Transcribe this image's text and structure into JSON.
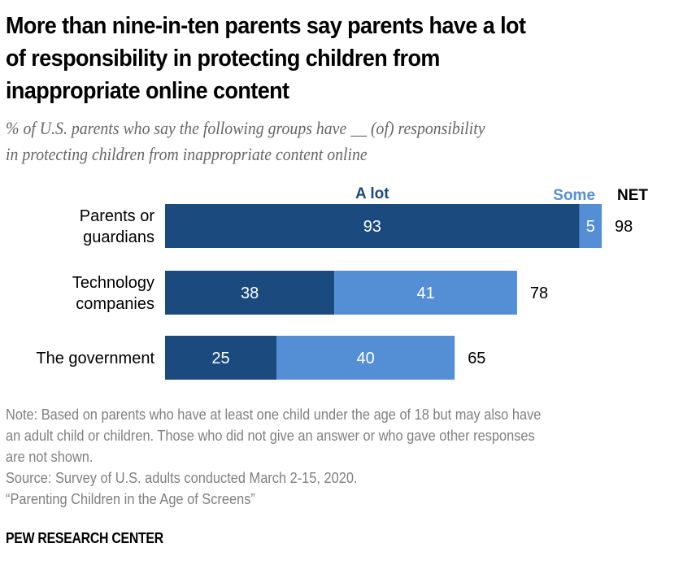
{
  "header": {
    "title_lines": [
      "More than nine-in-ten parents say parents have a lot",
      "of responsibility in protecting children from",
      "inappropriate online content"
    ],
    "subtitle_lines": [
      "% of U.S. parents who say the following groups have __ (of) responsibility",
      "in protecting children from inappropriate content online"
    ]
  },
  "footer": {
    "note_lines": [
      "Note: Based on parents who have at least one child under the age of 18 but may also have",
      "an adult child or children. Those who did not give an answer or who gave other responses",
      "are not shown."
    ],
    "source": "Source: Survey of U.S. adults conducted March 2-15, 2020.",
    "report": "“Parenting Children in the Age of Screens”",
    "brand": "PEW RESEARCH CENTER"
  },
  "colors": {
    "a_lot": "#1b4a7e",
    "some": "#548fd6",
    "value_label": "#ffffff",
    "net_label": "#000000"
  },
  "chart_data": {
    "type": "bar",
    "orientation": "horizontal",
    "stacked": true,
    "title": "More than nine-in-ten parents say parents have a lot of responsibility in protecting children from inappropriate online content",
    "subtitle": "% of U.S. parents who say the following groups have __ (of) responsibility in protecting children from inappropriate content online",
    "categories": [
      [
        "Parents or",
        "guardians"
      ],
      [
        "Technology",
        "companies"
      ],
      [
        "The government"
      ]
    ],
    "series": [
      {
        "name": "A lot",
        "values": [
          93,
          38,
          25
        ]
      },
      {
        "name": "Some",
        "values": [
          5,
          41,
          40
        ]
      }
    ],
    "net": {
      "name": "NET",
      "values": [
        98,
        78,
        65
      ]
    },
    "xlim": [
      0,
      100
    ],
    "grid": false,
    "legend": "top (column headers above bars)"
  }
}
